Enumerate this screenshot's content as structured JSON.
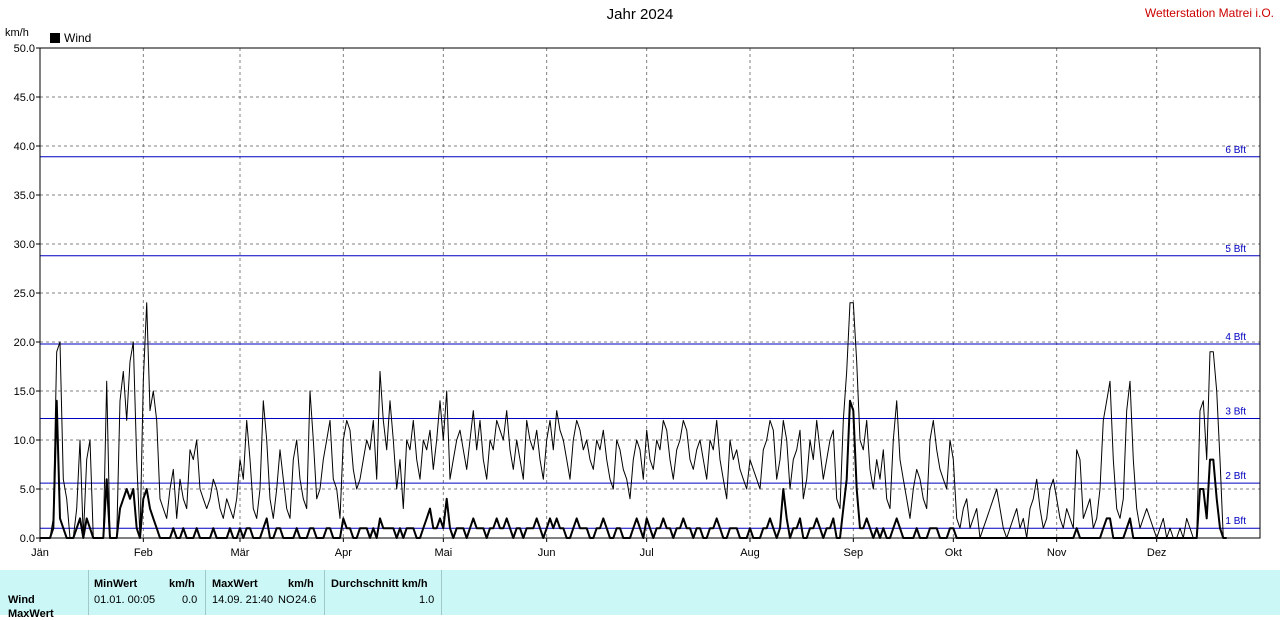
{
  "title": "Jahr 2024",
  "station": "Wetterstation Matrei i.O.",
  "unit": "km/h",
  "legend": "Wind",
  "footer": {
    "row_label": "Wind",
    "row2_label": "MaxWert",
    "min_header": "MinWert",
    "min_unit": "km/h",
    "min_time": "01.01.  00:05",
    "min_value": "0.0",
    "max_header": "MaxWert",
    "max_unit": "km/h",
    "max_time": "14.09.  21:40",
    "max_dir": "NO",
    "max_value": "24.6",
    "avg_header": "Durchschnitt km/h",
    "avg_value": "1.0"
  },
  "chart_data": {
    "type": "line",
    "title": "Jahr 2024",
    "ylabel": "km/h",
    "ylim": [
      0,
      50
    ],
    "yticks": [
      "0.0",
      "5.0",
      "10.0",
      "15.0",
      "20.0",
      "25.0",
      "30.0",
      "35.0",
      "40.0",
      "45.0",
      "50.0"
    ],
    "xlim": [
      1,
      367
    ],
    "months": [
      {
        "label": "Jän",
        "day": 1
      },
      {
        "label": "Feb",
        "day": 32
      },
      {
        "label": "Mär",
        "day": 61
      },
      {
        "label": "Apr",
        "day": 92
      },
      {
        "label": "Mai",
        "day": 122
      },
      {
        "label": "Jun",
        "day": 153
      },
      {
        "label": "Jul",
        "day": 183
      },
      {
        "label": "Aug",
        "day": 214
      },
      {
        "label": "Sep",
        "day": 245
      },
      {
        "label": "Okt",
        "day": 275
      },
      {
        "label": "Nov",
        "day": 306
      },
      {
        "label": "Dez",
        "day": 336
      }
    ],
    "beaufort": [
      {
        "label": "1 Bft",
        "value": 1.0
      },
      {
        "label": "2 Bft",
        "value": 5.6
      },
      {
        "label": "3 Bft",
        "value": 12.2
      },
      {
        "label": "4 Bft",
        "value": 19.8
      },
      {
        "label": "5 Bft",
        "value": 28.8
      },
      {
        "label": "6 Bft",
        "value": 38.9
      }
    ],
    "grid": true,
    "legend_position": "top-left",
    "colors": {
      "series": "#000000",
      "beaufort": "#0000c0",
      "grid": "#808080"
    },
    "series": [
      {
        "name": "Wind",
        "style": "gust",
        "values": [
          0,
          0,
          0,
          0,
          2,
          19,
          20,
          6,
          4,
          0,
          0,
          3,
          10,
          0,
          8,
          10,
          0,
          0,
          0,
          0,
          16,
          0,
          0,
          0,
          14,
          17,
          12,
          18,
          20,
          8,
          0,
          16,
          24,
          13,
          15,
          12,
          4,
          3,
          2,
          5,
          7,
          2,
          6,
          4,
          3,
          9,
          8,
          10,
          5,
          4,
          3,
          4,
          6,
          5,
          3,
          2,
          4,
          3,
          2,
          4,
          8,
          6,
          12,
          8,
          3,
          2,
          5,
          14,
          10,
          4,
          2,
          5,
          9,
          6,
          3,
          2,
          8,
          10,
          6,
          4,
          3,
          15,
          10,
          4,
          5,
          8,
          10,
          12,
          6,
          5,
          2,
          10,
          12,
          11,
          7,
          5,
          6,
          8,
          10,
          9,
          12,
          6,
          17,
          12,
          9,
          14,
          10,
          5,
          8,
          3,
          10,
          9,
          12,
          8,
          6,
          10,
          9,
          11,
          7,
          10,
          14,
          10,
          15,
          6,
          8,
          10,
          11,
          9,
          7,
          10,
          13,
          9,
          12,
          8,
          6,
          10,
          9,
          12,
          11,
          10,
          13,
          9,
          7,
          10,
          8,
          6,
          12,
          10,
          9,
          11,
          8,
          6,
          10,
          12,
          9,
          13,
          11,
          10,
          8,
          6,
          10,
          12,
          11,
          9,
          10,
          8,
          7,
          10,
          9,
          11,
          8,
          6,
          5,
          10,
          9,
          7,
          6,
          4,
          8,
          10,
          9,
          6,
          11,
          8,
          7,
          10,
          9,
          12,
          11,
          8,
          6,
          9,
          10,
          12,
          11,
          8,
          7,
          9,
          10,
          8,
          6,
          10,
          9,
          12,
          8,
          6,
          4,
          10,
          8,
          9,
          7,
          6,
          5,
          8,
          7,
          6,
          5,
          9,
          10,
          12,
          11,
          6,
          8,
          12,
          10,
          5,
          8,
          9,
          11,
          4,
          6,
          10,
          8,
          12,
          9,
          6,
          8,
          10,
          11,
          4,
          3,
          12,
          17,
          24,
          24,
          18,
          10,
          9,
          12,
          7,
          5,
          8,
          6,
          9,
          4,
          3,
          10,
          14,
          8,
          6,
          4,
          2,
          5,
          7,
          6,
          4,
          3,
          10,
          12,
          9,
          7,
          6,
          5,
          10,
          8,
          2,
          1,
          3,
          4,
          1,
          2,
          3,
          0,
          1,
          2,
          3,
          4,
          5,
          3,
          1,
          0,
          1,
          2,
          3,
          1,
          2,
          0,
          3,
          4,
          6,
          3,
          1,
          2,
          5,
          6,
          4,
          2,
          1,
          3,
          2,
          1,
          9,
          8,
          2,
          3,
          4,
          1,
          2,
          5,
          12,
          14,
          16,
          8,
          3,
          2,
          4,
          13,
          16,
          8,
          3,
          1,
          2,
          3,
          2,
          1,
          0,
          1,
          2,
          0,
          1,
          0,
          0,
          1,
          0,
          2,
          1,
          0,
          0,
          13,
          14,
          8,
          19,
          19,
          15,
          8,
          0,
          0
        ]
      },
      {
        "name": "Wind",
        "style": "mean",
        "values": [
          0,
          0,
          0,
          0,
          1,
          14,
          2,
          1,
          0,
          0,
          0,
          1,
          2,
          0,
          2,
          1,
          0,
          0,
          0,
          0,
          6,
          0,
          0,
          0,
          3,
          4,
          5,
          4,
          5,
          1,
          0,
          4,
          5,
          3,
          2,
          1,
          0,
          0,
          0,
          0,
          1,
          0,
          0,
          1,
          0,
          0,
          0,
          1,
          0,
          0,
          0,
          0,
          1,
          0,
          0,
          0,
          0,
          1,
          0,
          0,
          1,
          0,
          1,
          1,
          0,
          0,
          0,
          1,
          2,
          0,
          0,
          1,
          1,
          0,
          0,
          0,
          0,
          1,
          0,
          0,
          0,
          1,
          1,
          0,
          0,
          0,
          1,
          1,
          0,
          0,
          0,
          2,
          1,
          1,
          0,
          0,
          1,
          1,
          1,
          0,
          1,
          0,
          2,
          1,
          1,
          1,
          1,
          0,
          1,
          0,
          1,
          1,
          1,
          0,
          0,
          1,
          2,
          3,
          1,
          1,
          2,
          1,
          4,
          1,
          0,
          1,
          1,
          1,
          0,
          1,
          2,
          1,
          1,
          1,
          0,
          1,
          1,
          2,
          1,
          1,
          2,
          1,
          0,
          1,
          1,
          0,
          1,
          1,
          1,
          2,
          1,
          0,
          1,
          2,
          1,
          2,
          1,
          1,
          0,
          0,
          1,
          2,
          1,
          1,
          1,
          0,
          0,
          1,
          1,
          2,
          1,
          0,
          0,
          1,
          1,
          0,
          0,
          0,
          1,
          2,
          1,
          0,
          2,
          1,
          0,
          1,
          1,
          2,
          1,
          1,
          0,
          1,
          1,
          2,
          1,
          1,
          0,
          1,
          1,
          0,
          0,
          1,
          1,
          2,
          1,
          0,
          0,
          1,
          1,
          1,
          0,
          0,
          0,
          1,
          0,
          0,
          0,
          1,
          1,
          2,
          1,
          0,
          1,
          5,
          2,
          0,
          1,
          1,
          2,
          0,
          0,
          1,
          1,
          2,
          1,
          0,
          1,
          1,
          2,
          0,
          0,
          3,
          6,
          14,
          13,
          5,
          1,
          1,
          2,
          1,
          0,
          1,
          0,
          1,
          0,
          0,
          1,
          2,
          1,
          0,
          0,
          0,
          0,
          1,
          0,
          0,
          0,
          1,
          1,
          1,
          0,
          0,
          0,
          1,
          1,
          0,
          0,
          0,
          0,
          0,
          0,
          0,
          0,
          0,
          0,
          0,
          0,
          0,
          0,
          0,
          0,
          0,
          0,
          0,
          0,
          0,
          0,
          0,
          0,
          0,
          0,
          0,
          0,
          0,
          0,
          0,
          0,
          0,
          0,
          0,
          0,
          1,
          0,
          0,
          0,
          0,
          0,
          0,
          0,
          1,
          2,
          2,
          0,
          0,
          0,
          0,
          1,
          2,
          0,
          0,
          0,
          0,
          0,
          0,
          0,
          0,
          0,
          0,
          0,
          0,
          0,
          0,
          0,
          0,
          0,
          0,
          0,
          0,
          5,
          5,
          2,
          8,
          8,
          4,
          1,
          0,
          0
        ]
      }
    ]
  }
}
